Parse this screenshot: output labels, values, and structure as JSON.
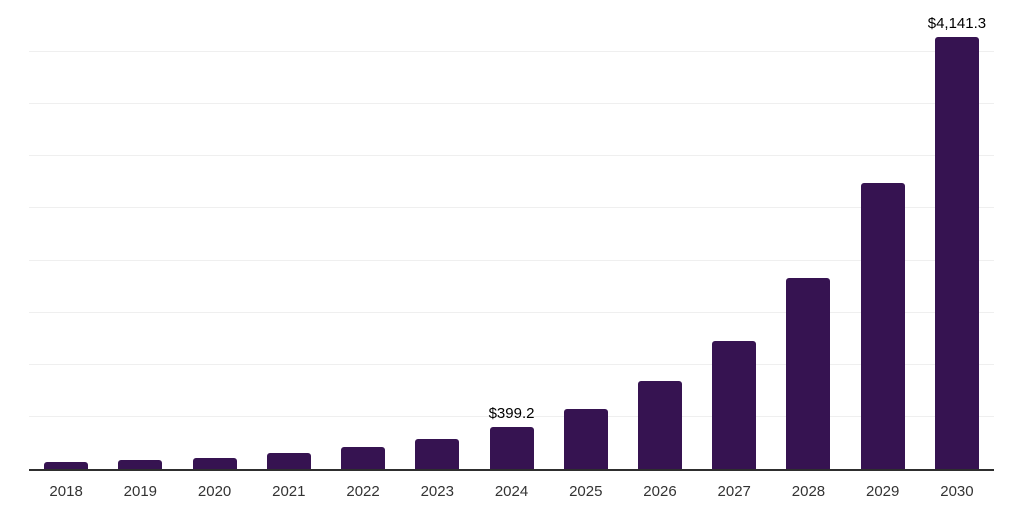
{
  "chart_data": {
    "type": "bar",
    "title": "",
    "xlabel": "",
    "ylabel": "",
    "categories": [
      "2018",
      "2019",
      "2020",
      "2021",
      "2022",
      "2023",
      "2024",
      "2025",
      "2026",
      "2027",
      "2028",
      "2029",
      "2030"
    ],
    "values": [
      70,
      82,
      109,
      157,
      208,
      285,
      399.2,
      578,
      849,
      1232,
      1836,
      2748,
      4141.3
    ],
    "data_labels": [
      {
        "category": "2024",
        "text": "$399.2"
      },
      {
        "category": "2030",
        "text": "$4,141.3"
      }
    ],
    "ylim": [
      0,
      4500
    ],
    "gridline_step": 500,
    "grid": "horizontal-only",
    "legend": "none",
    "y_axis_tick_labels": "none",
    "colors": {
      "bar": "#361351",
      "axis_line": "#2e2e2e",
      "gridline": "#efefef",
      "x_tick_label": "#333333",
      "data_label": "#000000",
      "background": "#ffffff"
    }
  }
}
